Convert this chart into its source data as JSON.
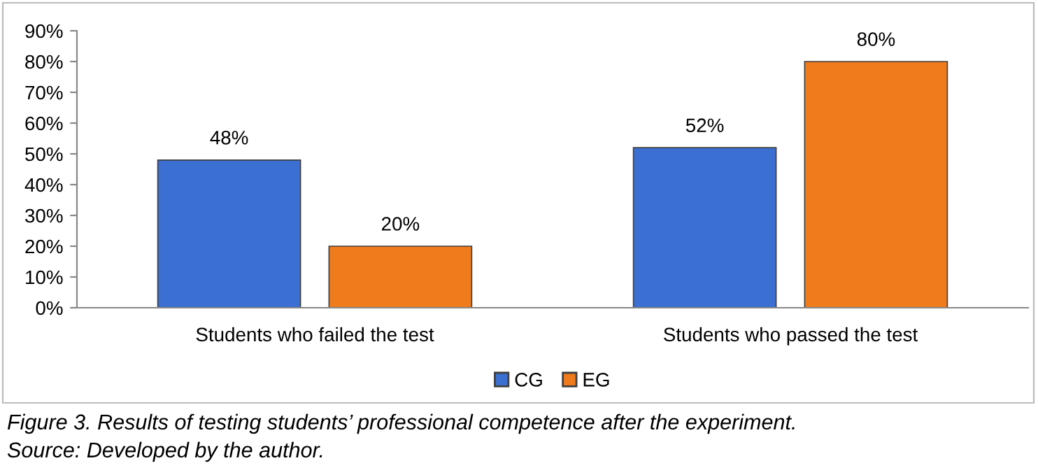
{
  "chart_data": {
    "type": "bar",
    "categories": [
      "Students who failed the test",
      "Students who passed the test"
    ],
    "series": [
      {
        "name": "CG",
        "color": "#3b6fd1",
        "values": [
          48,
          52
        ]
      },
      {
        "name": "EG",
        "color": "#f07b1c",
        "values": [
          20,
          80
        ]
      }
    ],
    "ylim": [
      0,
      90
    ],
    "yticks": [
      {
        "value": 0,
        "label": "0%"
      },
      {
        "value": 10,
        "label": "10%"
      },
      {
        "value": 20,
        "label": "20%"
      },
      {
        "value": 30,
        "label": "30%"
      },
      {
        "value": 40,
        "label": "40%"
      },
      {
        "value": 50,
        "label": "50%"
      },
      {
        "value": 60,
        "label": "60%"
      },
      {
        "value": 70,
        "label": "70%"
      },
      {
        "value": 80,
        "label": "80%"
      },
      {
        "value": 90,
        "label": "90%"
      }
    ],
    "value_labels": [
      [
        "48%",
        "52%"
      ],
      [
        "20%",
        "80%"
      ]
    ],
    "grid": false,
    "legend": "bottom",
    "annotations": [
      "Figure 3. Results of testing students’ professional competence after the experiment.",
      "Source: Developed by the author."
    ]
  }
}
